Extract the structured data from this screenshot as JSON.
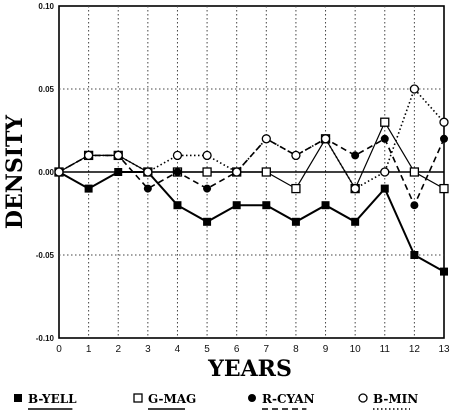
{
  "chart_data": {
    "type": "line",
    "title": "",
    "xlabel": "YEARS",
    "ylabel": "DENSITY",
    "x": [
      0,
      1,
      2,
      3,
      4,
      5,
      6,
      7,
      8,
      9,
      10,
      11,
      12,
      13
    ],
    "xlim": [
      0,
      13
    ],
    "ylim": [
      -0.1,
      0.1
    ],
    "y_ticks": [
      "-0.10",
      "-0.05",
      "0.00",
      "0.05",
      "0.10"
    ],
    "y_tick_values": [
      -0.1,
      -0.05,
      0.0,
      0.05,
      0.1
    ],
    "grid": true,
    "legend_position": "bottom",
    "series": [
      {
        "name": "B-YELL",
        "marker": "filled-square",
        "line_style": "solid",
        "color": "#000000",
        "values": [
          0.0,
          -0.01,
          0.0,
          0.0,
          -0.02,
          -0.03,
          -0.02,
          -0.02,
          -0.03,
          -0.02,
          -0.03,
          -0.01,
          -0.05,
          -0.06
        ]
      },
      {
        "name": "G-MAG",
        "marker": "open-square",
        "line_style": "solid-thin",
        "color": "#000000",
        "values": [
          0.0,
          0.01,
          0.01,
          0.0,
          0.0,
          0.0,
          0.0,
          0.0,
          -0.01,
          0.02,
          -0.01,
          0.03,
          0.0,
          -0.01
        ]
      },
      {
        "name": "R-CYAN",
        "marker": "filled-circle",
        "line_style": "dashed",
        "color": "#000000",
        "values": [
          0.0,
          0.01,
          0.01,
          -0.01,
          0.0,
          -0.01,
          0.0,
          0.02,
          0.01,
          0.02,
          0.01,
          0.02,
          -0.02,
          0.02
        ]
      },
      {
        "name": "B-MIN",
        "marker": "open-circle",
        "line_style": "dotted",
        "color": "#000000",
        "values": [
          0.0,
          0.01,
          0.01,
          0.0,
          0.01,
          0.01,
          0.0,
          0.02,
          0.01,
          0.02,
          -0.01,
          0.0,
          0.05,
          0.03
        ]
      }
    ]
  }
}
